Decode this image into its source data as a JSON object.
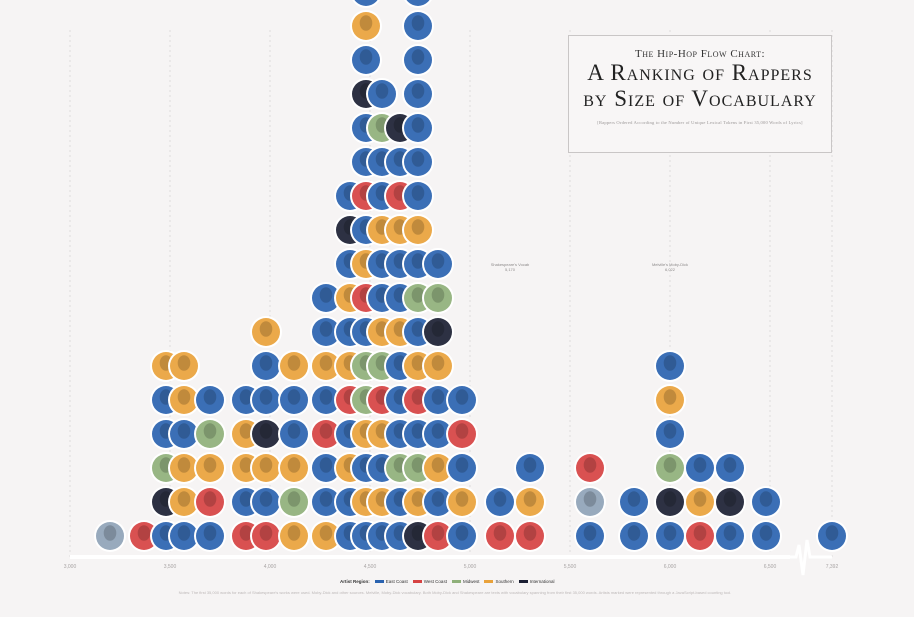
{
  "title": {
    "line1": "The Hip-Hop Flow Chart:",
    "line2": "A Ranking of Rappers",
    "line3": "by Size of Vocabulary",
    "subtitle": "[Rappers Ordered According to the Number of Unique Lexical Tokens in First 35,000 Words of Lyrics]"
  },
  "annotations": [
    {
      "text": "Shakespeare's Vocab 5,170",
      "x": 5170
    },
    {
      "text": "Melville's Moby-Dick 6,022",
      "x": 6022
    }
  ],
  "legend": {
    "heading": "Artist Region:",
    "items": [
      {
        "label": "East Coast",
        "color": "#2a63b0"
      },
      {
        "label": "West Coast",
        "color": "#d64242"
      },
      {
        "label": "Midwest",
        "color": "#8fb07a"
      },
      {
        "label": "Southern",
        "color": "#e9a23b"
      },
      {
        "label": "International",
        "color": "#1b1f33"
      }
    ]
  },
  "notes": "Notes: The first 35,000 words for each of Shakespeare's works were used. Moby-Dick and other sources. Melville, Moby-Dick vocabulary. Both Moby-Dick and Shakespeare are texts with vocabulary spanning from their first 35,000 words. Artists marked were represented through a JavaScript-based counting tool.",
  "chart_data": {
    "type": "scatter",
    "title": "A Ranking of Rappers by Size of Vocabulary",
    "xlabel": "",
    "ylabel": "",
    "x_ticks": [
      "3,000",
      "3,500",
      "4,000",
      "4,500",
      "5,000",
      "5,500",
      "6,000",
      "6,500",
      "7,392"
    ],
    "xlim": [
      3000,
      7392
    ],
    "grid": true,
    "legend_position": "bottom",
    "marker": "rapper portrait (circle)",
    "columns": [
      {
        "x": 3200,
        "count": 1,
        "colors": [
          "#8fa3b7"
        ]
      },
      {
        "x": 3370,
        "count": 1,
        "colors": [
          "#d64242"
        ]
      },
      {
        "x": 3480,
        "count": 6,
        "colors": [
          "#2a63b0",
          "#1b1f33",
          "#8fb07a",
          "#2a63b0",
          "#2a63b0",
          "#e9a23b"
        ]
      },
      {
        "x": 3570,
        "count": 6,
        "colors": [
          "#2a63b0",
          "#e9a23b",
          "#e9a23b",
          "#2a63b0",
          "#e9a23b",
          "#e9a23b"
        ]
      },
      {
        "x": 3700,
        "count": 5,
        "colors": [
          "#2a63b0",
          "#d64242",
          "#e9a23b",
          "#8fb07a",
          "#2a63b0"
        ]
      },
      {
        "x": 3880,
        "count": 5,
        "colors": [
          "#d64242",
          "#2a63b0",
          "#e9a23b",
          "#e9a23b",
          "#2a63b0"
        ]
      },
      {
        "x": 3980,
        "count": 7,
        "colors": [
          "#d64242",
          "#2a63b0",
          "#e9a23b",
          "#1b1f33",
          "#2a63b0",
          "#2a63b0",
          "#e9a23b"
        ]
      },
      {
        "x": 4120,
        "count": 6,
        "colors": [
          "#e9a23b",
          "#8fb07a",
          "#e9a23b",
          "#2a63b0",
          "#2a63b0",
          "#e9a23b"
        ]
      },
      {
        "x": 4280,
        "count": 8,
        "colors": [
          "#e9a23b",
          "#2a63b0",
          "#2a63b0",
          "#d64242",
          "#2a63b0",
          "#e9a23b",
          "#2a63b0",
          "#2a63b0"
        ]
      },
      {
        "x": 4400,
        "count": 11,
        "colors": [
          "#2a63b0",
          "#2a63b0",
          "#e9a23b",
          "#2a63b0",
          "#d64242",
          "#e9a23b",
          "#2a63b0",
          "#e9a23b",
          "#2a63b0",
          "#1b1f33",
          "#2a63b0"
        ]
      },
      {
        "x": 4480,
        "count": 19,
        "colors": [
          "#2a63b0",
          "#e9a23b",
          "#2a63b0",
          "#e9a23b",
          "#8fb07a",
          "#8fb07a",
          "#2a63b0",
          "#d64242",
          "#e9a23b",
          "#2a63b0",
          "#d64242",
          "#2a63b0",
          "#2a63b0",
          "#1b1f33",
          "#2a63b0",
          "#e9a23b",
          "#2a63b0",
          "#2a63b0",
          "#e9a23b"
        ]
      },
      {
        "x": 4560,
        "count": 14,
        "colors": [
          "#2a63b0",
          "#e9a23b",
          "#2a63b0",
          "#e9a23b",
          "#d64242",
          "#8fb07a",
          "#e9a23b",
          "#2a63b0",
          "#2a63b0",
          "#e9a23b",
          "#2a63b0",
          "#2a63b0",
          "#8fb07a",
          "#2a63b0"
        ]
      },
      {
        "x": 4650,
        "count": 13,
        "colors": [
          "#2a63b0",
          "#2a63b0",
          "#8fb07a",
          "#2a63b0",
          "#2a63b0",
          "#2a63b0",
          "#e9a23b",
          "#2a63b0",
          "#2a63b0",
          "#e9a23b",
          "#d64242",
          "#2a63b0",
          "#1b1f33"
        ]
      },
      {
        "x": 4740,
        "count": 17,
        "colors": [
          "#1b1f33",
          "#e9a23b",
          "#8fb07a",
          "#2a63b0",
          "#d64242",
          "#e9a23b",
          "#2a63b0",
          "#8fb07a",
          "#2a63b0",
          "#e9a23b",
          "#2a63b0",
          "#2a63b0",
          "#2a63b0",
          "#2a63b0",
          "#2a63b0",
          "#2a63b0",
          "#2a63b0"
        ]
      },
      {
        "x": 4840,
        "count": 9,
        "colors": [
          "#d64242",
          "#2a63b0",
          "#e9a23b",
          "#2a63b0",
          "#2a63b0",
          "#e9a23b",
          "#1b1f33",
          "#8fb07a",
          "#2a63b0"
        ]
      },
      {
        "x": 4960,
        "count": 5,
        "colors": [
          "#2a63b0",
          "#e9a23b",
          "#2a63b0",
          "#d64242",
          "#2a63b0"
        ]
      },
      {
        "x": 5150,
        "count": 2,
        "colors": [
          "#d64242",
          "#2a63b0"
        ]
      },
      {
        "x": 5300,
        "count": 3,
        "colors": [
          "#d64242",
          "#e9a23b",
          "#2a63b0"
        ]
      },
      {
        "x": 5600,
        "count": 3,
        "colors": [
          "#2a63b0",
          "#8fa3b7",
          "#d64242"
        ]
      },
      {
        "x": 5820,
        "count": 2,
        "colors": [
          "#2a63b0",
          "#2a63b0"
        ]
      },
      {
        "x": 6000,
        "count": 6,
        "colors": [
          "#2a63b0",
          "#1b1f33",
          "#8fb07a",
          "#2a63b0",
          "#e9a23b",
          "#2a63b0"
        ]
      },
      {
        "x": 6150,
        "count": 3,
        "colors": [
          "#d64242",
          "#e9a23b",
          "#2a63b0"
        ]
      },
      {
        "x": 6300,
        "count": 3,
        "colors": [
          "#2a63b0",
          "#1b1f33",
          "#2a63b0"
        ]
      },
      {
        "x": 6480,
        "count": 2,
        "colors": [
          "#2a63b0",
          "#2a63b0"
        ]
      },
      {
        "x": 7392,
        "count": 1,
        "colors": [
          "#2a63b0"
        ]
      }
    ]
  }
}
